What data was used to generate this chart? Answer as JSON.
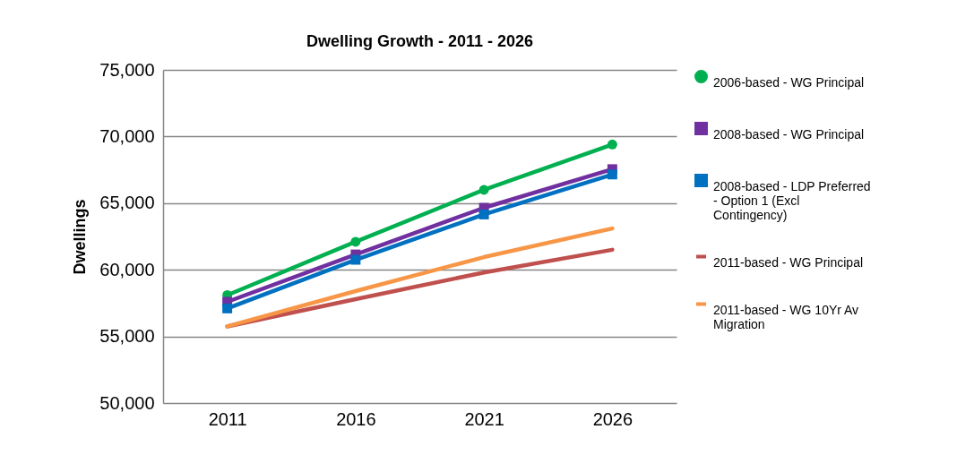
{
  "chart_data": {
    "type": "line",
    "title": "Dwelling Growth - 2011 - 2026",
    "ylabel": "Dwellings",
    "categories": [
      "2011",
      "2016",
      "2021",
      "2026"
    ],
    "series": [
      {
        "name": "2006-based - WG Principal",
        "color": "#00b050",
        "marker": "circle",
        "values": [
          58100,
          62100,
          66000,
          69400
        ]
      },
      {
        "name": "2008-based - WG Principal",
        "color": "#7030a0",
        "marker": "square",
        "values": [
          57600,
          61150,
          64650,
          67550
        ]
      },
      {
        "name": "2008-based - LDP Preferred - Option 1 (Excl Contingency)",
        "color": "#0070c0",
        "marker": "square",
        "values": [
          57100,
          60750,
          64150,
          67150
        ]
      },
      {
        "name": "2011-based - WG Principal",
        "color": "#c0504d",
        "marker": "none",
        "values": [
          55750,
          57800,
          59800,
          61500
        ]
      },
      {
        "name": "2011-based - WG 10Yr Av Migration",
        "color": "#f79646",
        "marker": "none",
        "values": [
          55750,
          58400,
          60950,
          63100
        ]
      }
    ],
    "ylim": [
      50000,
      75000
    ],
    "yticks": [
      {
        "value": 50000,
        "label": "50,000"
      },
      {
        "value": 55000,
        "label": "55,000"
      },
      {
        "value": 60000,
        "label": "60,000"
      },
      {
        "value": 65000,
        "label": "65,000"
      },
      {
        "value": 70000,
        "label": "70,000"
      },
      {
        "value": 75000,
        "label": "75,000"
      }
    ],
    "grid": "y",
    "legend": "right"
  }
}
